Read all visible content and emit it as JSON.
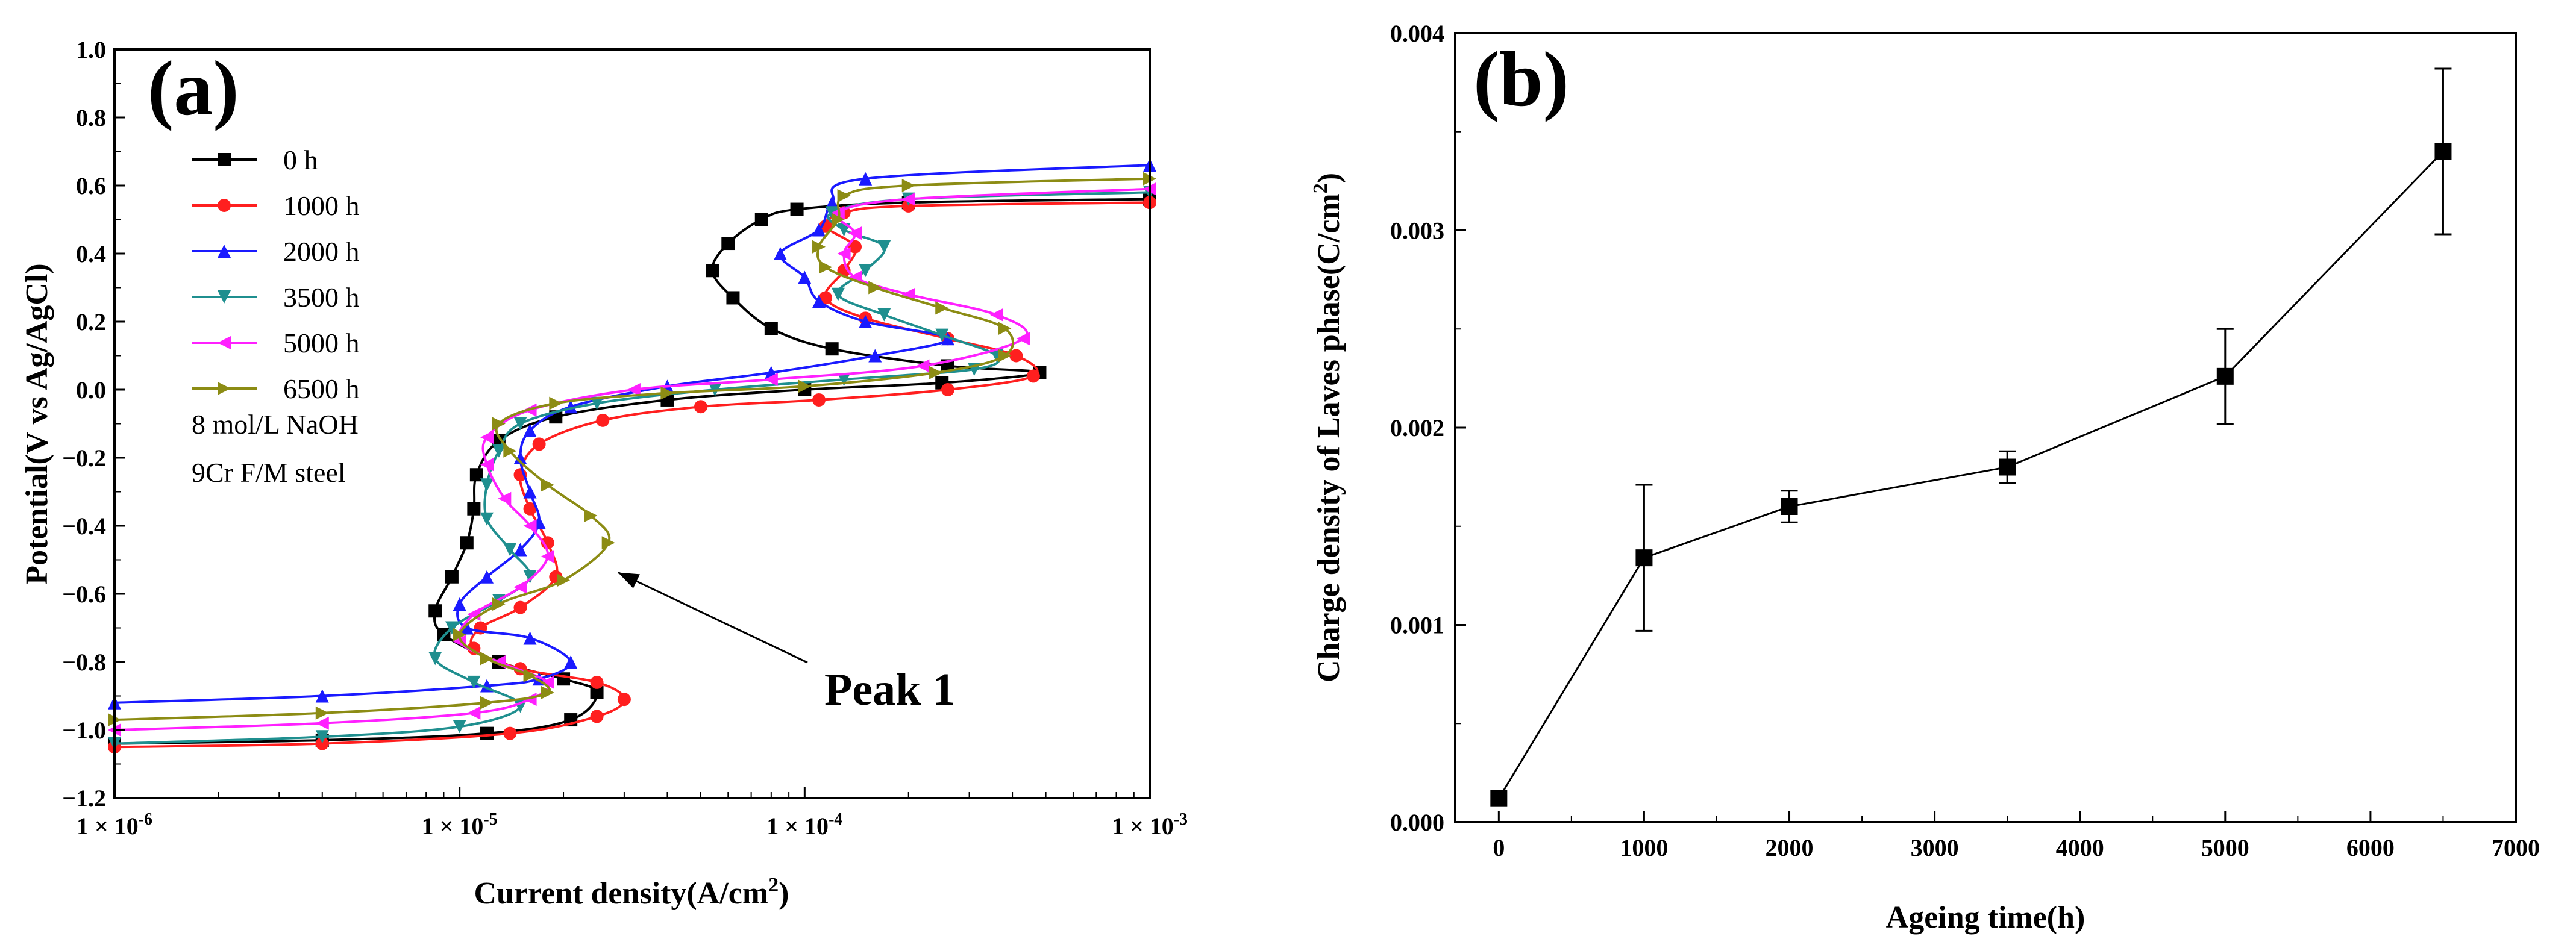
{
  "chart_data": [
    {
      "panel_label": "(a)",
      "type": "line",
      "xscale": "log",
      "xlim": [
        1e-06,
        0.001
      ],
      "ylim": [
        -1.2,
        1.0
      ],
      "xlabel": "Current density(A/cm",
      "xlabel_sup": "2",
      "xlabel_end": ")",
      "ylabel": "Potential(V vs Ag/AgCl)",
      "x_ticks": [
        {
          "value": 1e-06,
          "base": "1 × 10",
          "exp": "-6"
        },
        {
          "value": 1e-05,
          "base": "1 × 10",
          "exp": "-5"
        },
        {
          "value": 0.0001,
          "base": "1 × 10",
          "exp": "-4"
        },
        {
          "value": 0.001,
          "base": "1 × 10",
          "exp": "-3"
        }
      ],
      "y_ticks": [
        {
          "value": 1.0,
          "label": "1.0"
        },
        {
          "value": 0.8,
          "label": "0.8"
        },
        {
          "value": 0.6,
          "label": "0.6"
        },
        {
          "value": 0.4,
          "label": "0.4"
        },
        {
          "value": 0.2,
          "label": "0.2"
        },
        {
          "value": 0.0,
          "label": "0.0"
        },
        {
          "value": -0.2,
          "label": "−0.2"
        },
        {
          "value": -0.4,
          "label": "−0.4"
        },
        {
          "value": -0.6,
          "label": "−0.6"
        },
        {
          "value": -0.8,
          "label": "−0.8"
        },
        {
          "value": -1.0,
          "label": "−1.0"
        },
        {
          "value": -1.2,
          "label": "−1.2"
        }
      ],
      "notes": [
        "8 mol/L NaOH",
        "9Cr F/M steel"
      ],
      "annotation": {
        "text": "Peak 1",
        "arrow_to": {
          "x": 2.7e-05,
          "y": -0.53
        }
      },
      "series": [
        {
          "name": "0 h",
          "color": "#000000",
          "marker": "square",
          "points": [
            [
              1e-06,
              -1.04
            ],
            [
              4e-06,
              -1.03
            ],
            [
              1.2e-05,
              -1.01
            ],
            [
              2.1e-05,
              -0.97
            ],
            [
              2.5e-05,
              -0.89
            ],
            [
              2e-05,
              -0.85
            ],
            [
              1.3e-05,
              -0.8
            ],
            [
              9e-06,
              -0.72
            ],
            [
              8.5e-06,
              -0.65
            ],
            [
              9.5e-06,
              -0.55
            ],
            [
              1.05e-05,
              -0.45
            ],
            [
              1.1e-05,
              -0.35
            ],
            [
              1.12e-05,
              -0.25
            ],
            [
              1.3e-05,
              -0.15
            ],
            [
              1.9e-05,
              -0.08
            ],
            [
              4e-05,
              -0.03
            ],
            [
              0.0001,
              0.0
            ],
            [
              0.00025,
              0.02
            ],
            [
              0.00048,
              0.05
            ],
            [
              0.00026,
              0.07
            ],
            [
              0.00012,
              0.12
            ],
            [
              8e-05,
              0.18
            ],
            [
              6.2e-05,
              0.27
            ],
            [
              5.4e-05,
              0.35
            ],
            [
              6e-05,
              0.43
            ],
            [
              7.5e-05,
              0.5
            ],
            [
              9.5e-05,
              0.53
            ],
            [
              0.0002,
              0.55
            ],
            [
              0.001,
              0.56
            ]
          ]
        },
        {
          "name": "1000 h",
          "color": "#ff1f1f",
          "marker": "circle",
          "points": [
            [
              1e-06,
              -1.05
            ],
            [
              4e-06,
              -1.04
            ],
            [
              1.4e-05,
              -1.01
            ],
            [
              2.5e-05,
              -0.96
            ],
            [
              3e-05,
              -0.91
            ],
            [
              2.5e-05,
              -0.86
            ],
            [
              1.5e-05,
              -0.82
            ],
            [
              1.1e-05,
              -0.76
            ],
            [
              1.15e-05,
              -0.7
            ],
            [
              1.5e-05,
              -0.64
            ],
            [
              1.9e-05,
              -0.55
            ],
            [
              1.8e-05,
              -0.45
            ],
            [
              1.6e-05,
              -0.35
            ],
            [
              1.5e-05,
              -0.25
            ],
            [
              1.7e-05,
              -0.16
            ],
            [
              2.6e-05,
              -0.09
            ],
            [
              5e-05,
              -0.05
            ],
            [
              0.00011,
              -0.03
            ],
            [
              0.00026,
              0.0
            ],
            [
              0.00046,
              0.04
            ],
            [
              0.00041,
              0.1
            ],
            [
              0.00026,
              0.15
            ],
            [
              0.00015,
              0.21
            ],
            [
              0.000115,
              0.27
            ],
            [
              0.00013,
              0.35
            ],
            [
              0.00014,
              0.42
            ],
            [
              0.000115,
              0.48
            ],
            [
              0.00013,
              0.52
            ],
            [
              0.0002,
              0.54
            ],
            [
              0.001,
              0.55
            ]
          ]
        },
        {
          "name": "2000 h",
          "color": "#1a1aff",
          "marker": "triangle-up",
          "points": [
            [
              1e-06,
              -0.92
            ],
            [
              4e-06,
              -0.9
            ],
            [
              1.2e-05,
              -0.87
            ],
            [
              1.7e-05,
              -0.85
            ],
            [
              2.1e-05,
              -0.8
            ],
            [
              1.6e-05,
              -0.73
            ],
            [
              1.05e-05,
              -0.7
            ],
            [
              1e-05,
              -0.63
            ],
            [
              1.2e-05,
              -0.55
            ],
            [
              1.5e-05,
              -0.47
            ],
            [
              1.7e-05,
              -0.39
            ],
            [
              1.6e-05,
              -0.3
            ],
            [
              1.5e-05,
              -0.2
            ],
            [
              1.6e-05,
              -0.12
            ],
            [
              2.1e-05,
              -0.05
            ],
            [
              4e-05,
              0.01
            ],
            [
              8e-05,
              0.05
            ],
            [
              0.00016,
              0.1
            ],
            [
              0.00026,
              0.15
            ],
            [
              0.00015,
              0.2
            ],
            [
              0.00011,
              0.26
            ],
            [
              0.0001,
              0.33
            ],
            [
              8.5e-05,
              0.4
            ],
            [
              0.00011,
              0.47
            ],
            [
              0.00012,
              0.55
            ],
            [
              0.00015,
              0.62
            ],
            [
              0.001,
              0.66
            ]
          ]
        },
        {
          "name": "3500 h",
          "color": "#1f8f8f",
          "marker": "triangle-down",
          "points": [
            [
              1e-06,
              -1.04
            ],
            [
              4e-06,
              -1.02
            ],
            [
              1e-05,
              -0.99
            ],
            [
              1.5e-05,
              -0.93
            ],
            [
              1.1e-05,
              -0.86
            ],
            [
              8.5e-06,
              -0.79
            ],
            [
              9.5e-06,
              -0.7
            ],
            [
              1.3e-05,
              -0.62
            ],
            [
              1.6e-05,
              -0.55
            ],
            [
              1.4e-05,
              -0.47
            ],
            [
              1.2e-05,
              -0.38
            ],
            [
              1.2e-05,
              -0.28
            ],
            [
              1.3e-05,
              -0.18
            ],
            [
              1.5e-05,
              -0.1
            ],
            [
              2.5e-05,
              -0.04
            ],
            [
              5.5e-05,
              0.0
            ],
            [
              0.00013,
              0.03
            ],
            [
              0.00031,
              0.06
            ],
            [
              0.00036,
              0.1
            ],
            [
              0.00025,
              0.16
            ],
            [
              0.00017,
              0.22
            ],
            [
              0.000125,
              0.28
            ],
            [
              0.00015,
              0.35
            ],
            [
              0.00017,
              0.42
            ],
            [
              0.00013,
              0.47
            ],
            [
              0.00012,
              0.52
            ],
            [
              0.0002,
              0.56
            ],
            [
              0.001,
              0.58
            ]
          ]
        },
        {
          "name": "5000 h",
          "color": "#ff20ff",
          "marker": "triangle-left",
          "points": [
            [
              1e-06,
              -1.0
            ],
            [
              4e-06,
              -0.98
            ],
            [
              1.1e-05,
              -0.95
            ],
            [
              1.6e-05,
              -0.91
            ],
            [
              1.8e-05,
              -0.86
            ],
            [
              1.3e-05,
              -0.8
            ],
            [
              1e-05,
              -0.74
            ],
            [
              1.1e-05,
              -0.66
            ],
            [
              1.5e-05,
              -0.58
            ],
            [
              1.8e-05,
              -0.49
            ],
            [
              1.6e-05,
              -0.4
            ],
            [
              1.35e-05,
              -0.32
            ],
            [
              1.2e-05,
              -0.22
            ],
            [
              1.2e-05,
              -0.14
            ],
            [
              1.6e-05,
              -0.06
            ],
            [
              3.2e-05,
              0.0
            ],
            [
              8e-05,
              0.03
            ],
            [
              0.00022,
              0.07
            ],
            [
              0.00043,
              0.15
            ],
            [
              0.00036,
              0.22
            ],
            [
              0.0002,
              0.28
            ],
            [
              0.00014,
              0.33
            ],
            [
              0.00013,
              0.4
            ],
            [
              0.00014,
              0.46
            ],
            [
              0.000125,
              0.52
            ],
            [
              0.0002,
              0.56
            ],
            [
              0.001,
              0.59
            ]
          ]
        },
        {
          "name": "6500 h",
          "color": "#8c8c14",
          "marker": "triangle-right",
          "points": [
            [
              1e-06,
              -0.97
            ],
            [
              4e-06,
              -0.95
            ],
            [
              1.2e-05,
              -0.92
            ],
            [
              1.8e-05,
              -0.89
            ],
            [
              1.6e-05,
              -0.84
            ],
            [
              1.2e-05,
              -0.79
            ],
            [
              1e-05,
              -0.72
            ],
            [
              1.3e-05,
              -0.63
            ],
            [
              2e-05,
              -0.56
            ],
            [
              2.7e-05,
              -0.45
            ],
            [
              2.4e-05,
              -0.37
            ],
            [
              1.8e-05,
              -0.28
            ],
            [
              1.4e-05,
              -0.18
            ],
            [
              1.3e-05,
              -0.1
            ],
            [
              1.9e-05,
              -0.04
            ],
            [
              4e-05,
              -0.01
            ],
            [
              0.0001,
              0.01
            ],
            [
              0.00024,
              0.05
            ],
            [
              0.00038,
              0.1
            ],
            [
              0.00038,
              0.18
            ],
            [
              0.00025,
              0.24
            ],
            [
              0.00016,
              0.3
            ],
            [
              0.000115,
              0.36
            ],
            [
              0.00011,
              0.42
            ],
            [
              0.000125,
              0.5
            ],
            [
              0.00013,
              0.57
            ],
            [
              0.0002,
              0.6
            ],
            [
              0.001,
              0.62
            ]
          ]
        }
      ]
    },
    {
      "panel_label": "(b)",
      "type": "line",
      "xlim": [
        -300,
        7000
      ],
      "ylim": [
        0,
        0.004
      ],
      "xlabel": "Ageing time(h)",
      "ylabel": "Charge density of  Laves phase(C/cm",
      "ylabel_sup": "2",
      "ylabel_end": ")",
      "x_ticks": [
        {
          "value": 0,
          "label": "0"
        },
        {
          "value": 1000,
          "label": "1000"
        },
        {
          "value": 2000,
          "label": "2000"
        },
        {
          "value": 3000,
          "label": "3000"
        },
        {
          "value": 4000,
          "label": "4000"
        },
        {
          "value": 5000,
          "label": "5000"
        },
        {
          "value": 6000,
          "label": "6000"
        },
        {
          "value": 7000,
          "label": "7000"
        }
      ],
      "y_ticks": [
        {
          "value": 0.0,
          "label": "0.000"
        },
        {
          "value": 0.001,
          "label": "0.001"
        },
        {
          "value": 0.002,
          "label": "0.002"
        },
        {
          "value": 0.003,
          "label": "0.003"
        },
        {
          "value": 0.004,
          "label": "0.004"
        }
      ],
      "series": [
        {
          "name": "Charge density",
          "color": "#000000",
          "marker": "square",
          "x": [
            0,
            1000,
            2000,
            3500,
            5000,
            6500
          ],
          "y": [
            0.00012,
            0.00134,
            0.0016,
            0.0018,
            0.00226,
            0.0034
          ],
          "err": [
            0,
            0.00037,
            8e-05,
            8e-05,
            0.00024,
            0.00042
          ]
        }
      ]
    }
  ]
}
